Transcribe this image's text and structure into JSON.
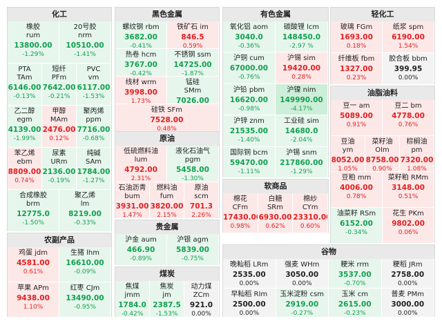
{
  "colors": {
    "up": "#e02020",
    "down": "#12a050",
    "flat": "#222222"
  },
  "sections": {
    "chemical": {
      "title": "化工",
      "items": [
        {
          "name": "橡胶\nrum",
          "price": "13800.00",
          "change": "-1.29%",
          "dir": "dn"
        },
        {
          "name": "20号胶\nnrm",
          "price": "10510.00",
          "change": "-1.41%",
          "dir": "dn"
        },
        {
          "name": "PTA\nTAm",
          "price": "6146.00",
          "change": "-0.13%",
          "dir": "dn"
        },
        {
          "name": "短纤\nPFm",
          "price": "7642.00",
          "change": "-0.21%",
          "dir": "dn"
        },
        {
          "name": "PVC\nvm",
          "price": "6117.00",
          "change": "-1.53%",
          "dir": "dn"
        },
        {
          "name": "乙二醇\negm",
          "price": "4139.00",
          "change": "-1.99%",
          "dir": "dn"
        },
        {
          "name": "甲醇\nMAm",
          "price": "2476.00",
          "change": "0.12%",
          "dir": "up"
        },
        {
          "name": "聚丙烯\nppm",
          "price": "7716.00",
          "change": "-0.68%",
          "dir": "dn"
        },
        {
          "name": "苯乙烯\nebm",
          "price": "8809.00",
          "change": "0.74%",
          "dir": "up"
        },
        {
          "name": "尿素\nURm",
          "price": "2136.00",
          "change": "-0.19%",
          "dir": "dn"
        },
        {
          "name": "纯碱\nSAm",
          "price": "1784.00",
          "change": "-1.27%",
          "dir": "dn"
        },
        {
          "name": "合成橡胶\nbrm",
          "price": "12775.0",
          "change": "-1.50%",
          "dir": "dn"
        },
        {
          "name": "聚乙烯\nlm",
          "price": "8219.00",
          "change": "-0.33%",
          "dir": "dn"
        }
      ]
    },
    "agri": {
      "title": "农副产品",
      "items": [
        {
          "name": "鸡蛋  jdm",
          "price": "4581.00",
          "change": "0.61%",
          "dir": "up"
        },
        {
          "name": "生猪  lhm",
          "price": "16610.00",
          "change": "-0.09%",
          "dir": "dn"
        },
        {
          "name": "苹果  APm",
          "price": "9438.00",
          "change": "1.10%",
          "dir": "up"
        },
        {
          "name": "红枣  CJm",
          "price": "13490.00",
          "change": "-0.95%",
          "dir": "dn"
        }
      ]
    },
    "ferrous": {
      "title": "黑色金属",
      "items": [
        {
          "name": "螺纹钢  rbm",
          "price": "3682.00",
          "change": "-0.41%",
          "dir": "dn"
        },
        {
          "name": "铁矿石  im",
          "price": "846.5",
          "change": "0.59%",
          "dir": "up"
        },
        {
          "name": "热卷  hcm",
          "price": "3767.00",
          "change": "-0.42%",
          "dir": "dn"
        },
        {
          "name": "不锈钢  ssm",
          "price": "14725.00",
          "change": "-1.87%",
          "dir": "dn"
        },
        {
          "name": "线材  wrm",
          "price": "3998.00",
          "change": "1.73%",
          "dir": "up"
        },
        {
          "name": "锰硅\nSMm",
          "price": "7026.00",
          "change": "-0.40%",
          "dir": "dn"
        },
        {
          "name": "硅铁  SFm",
          "price": "7528.00",
          "change": "0.48%",
          "dir": "up"
        }
      ]
    },
    "crude": {
      "title": "原油",
      "items": [
        {
          "name": "低硫燃料油\nlum",
          "price": "4792.00",
          "change": "2.31%",
          "dir": "up"
        },
        {
          "name": "液化石油气\npgm",
          "price": "5458.00",
          "change": "-1.30%",
          "dir": "dn"
        },
        {
          "name": "石油沥青\nbum",
          "price": "3931.00",
          "change": "1.47%",
          "dir": "up"
        },
        {
          "name": "燃料油\nfum",
          "price": "3820.00",
          "change": "2.15%",
          "dir": "up"
        },
        {
          "name": "原油\nscm",
          "price": "701.3",
          "change": "2.26%",
          "dir": "up"
        }
      ]
    },
    "precious": {
      "title": "贵金属",
      "items": [
        {
          "name": "沪金  aum",
          "price": "466.90",
          "change": "-0.89%",
          "dir": "dn"
        },
        {
          "name": "沪银  agm",
          "price": "5839.00",
          "change": "-0.75%",
          "dir": "dn"
        }
      ]
    },
    "coal": {
      "title": "煤炭",
      "items": [
        {
          "name": "焦煤\njmm",
          "price": "1784.0",
          "change": "-0.42%",
          "dir": "dn"
        },
        {
          "name": "焦炭\njm",
          "price": "2387.5",
          "change": "-1.53%",
          "dir": "dn"
        },
        {
          "name": "动力煤\nZCm",
          "price": "921.0",
          "change": "0.00%",
          "dir": "fl"
        }
      ]
    },
    "nonferrous": {
      "title": "有色金属",
      "items": [
        {
          "name": "氧化铝  aom",
          "price": "3040.0",
          "change": "-0.36%",
          "dir": "dn"
        },
        {
          "name": "碳酸锂  lcm",
          "price": "148450.0",
          "change": "-2.97\n%",
          "dir": "dn"
        },
        {
          "name": "沪铜  cum",
          "price": "67000.00",
          "change": "-0.76%",
          "dir": "dn"
        },
        {
          "name": "沪锡  sim",
          "price": "19420.00",
          "change": "0.28%",
          "dir": "up"
        },
        {
          "name": "沪铅  pbm",
          "price": "16620.00",
          "change": "-0.98%",
          "dir": "dn"
        },
        {
          "name": "沪镍  nim",
          "price": "149990.00",
          "change": "-4.17%",
          "dir": "dn2"
        },
        {
          "name": "沪锌  znm",
          "price": "21535.00",
          "change": "-1.40%",
          "dir": "dn"
        },
        {
          "name": "工业硅  sim",
          "price": "14680.0",
          "change": "-2.04%",
          "dir": "dn"
        },
        {
          "name": "国际铜  bcm",
          "price": "59470.00",
          "change": "-1.11%",
          "dir": "dn"
        },
        {
          "name": "沪锡  snm",
          "price": "217860.00",
          "change": "-1.29%",
          "dir": "dn"
        }
      ]
    },
    "soft": {
      "title": "软商品",
      "items": [
        {
          "name": "棉花\nCFm",
          "price": "17430.00",
          "change": "0.98%",
          "dir": "up"
        },
        {
          "name": "白糖\nSRm",
          "price": "6930.00",
          "change": "0.62%",
          "dir": "up"
        },
        {
          "name": "棉纱\nCYm",
          "price": "23310.00",
          "change": "0.60%",
          "dir": "up"
        }
      ]
    },
    "grain": {
      "title": "谷物",
      "items": [
        {
          "name": "晚籼稻  LRm",
          "price": "2535.00",
          "change": "0.00%",
          "dir": "fl"
        },
        {
          "name": "强麦  WHm",
          "price": "3050.00",
          "change": "0.00%",
          "dir": "fl"
        },
        {
          "name": "粳米  rrm",
          "price": "3537.00",
          "change": "-0.70%",
          "dir": "dn"
        },
        {
          "name": "粳稻  JRm",
          "price": "2758.00",
          "change": "0.00%",
          "dir": "fl"
        },
        {
          "name": "早籼稻  RIm",
          "price": "2500.00",
          "change": "0.00%",
          "dir": "fl"
        },
        {
          "name": "玉米淀粉  csm",
          "price": "2919.00",
          "change": "-0.27%",
          "dir": "dn"
        },
        {
          "name": "玉米  cm",
          "price": "2615.00",
          "change": "-0.23%",
          "dir": "dn"
        },
        {
          "name": "普麦  PMm",
          "price": "3000.00",
          "change": "0.00%",
          "dir": "fl"
        }
      ]
    },
    "light": {
      "title": "轻化工",
      "items": [
        {
          "name": "玻璃  FGm",
          "price": "1693.00",
          "change": "0.18%",
          "dir": "up"
        },
        {
          "name": "纸浆  spm",
          "price": "6190.00",
          "change": "1.54%",
          "dir": "up"
        },
        {
          "name": "纤维板  fbm",
          "price": "1327.00",
          "change": "0.23%",
          "dir": "up"
        },
        {
          "name": "胶合板  bbm",
          "price": "399.95",
          "change": "0.00%",
          "dir": "fl"
        }
      ]
    },
    "oils": {
      "title": "油脂油料",
      "items": [
        {
          "name": "豆一  am",
          "price": "5089.00",
          "change": "0.91%",
          "dir": "up"
        },
        {
          "name": "豆二  bm",
          "price": "4778.00",
          "change": "0.76%",
          "dir": "up"
        },
        {
          "name": "豆油\nym",
          "price": "8052.00",
          "change": "1.05%",
          "dir": "up"
        },
        {
          "name": "菜籽油\nOIm",
          "price": "8758.00",
          "change": "0.90%",
          "dir": "up"
        },
        {
          "name": "棕榈油\npm",
          "price": "7320.00",
          "change": "1.08%",
          "dir": "up"
        },
        {
          "name": "豆粕  mm",
          "price": "4006.00",
          "change": "0.78%",
          "dir": "up"
        },
        {
          "name": "菜籽粕  RMm",
          "price": "3148.00",
          "change": "0.51%",
          "dir": "up"
        },
        {
          "name": "油菜籽  RSm",
          "price": "6152.00",
          "change": "-0.34%",
          "dir": "dn"
        },
        {
          "name": "花生  PKm",
          "price": "9802.00",
          "change": "0.06%",
          "dir": "up"
        }
      ]
    }
  }
}
